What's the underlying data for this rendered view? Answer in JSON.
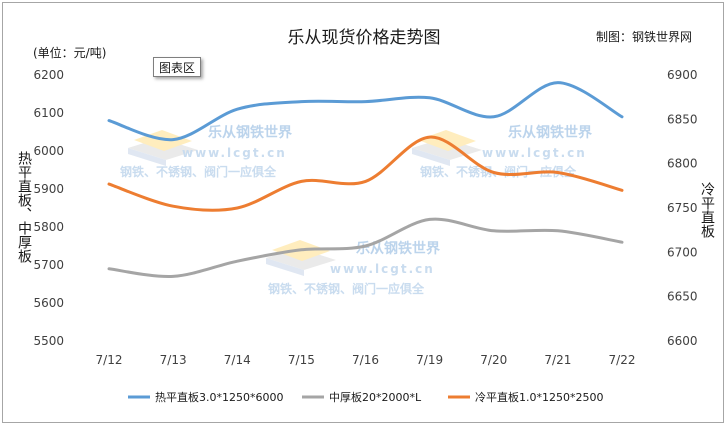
{
  "header": {
    "title": "乐从现货价格走势图",
    "credit": "制图：钢铁世界网",
    "unit": "(单位：元/吨)"
  },
  "tooltip": "图表区",
  "watermark": {
    "brand": "乐从钢铁世界",
    "url": "www.lcgt.cn",
    "slogan": "钢铁、不锈钢、阀门一应俱全"
  },
  "chart_data": {
    "type": "line",
    "categories": [
      "7/12",
      "7/13",
      "7/14",
      "7/15",
      "7/16",
      "7/19",
      "7/20",
      "7/21",
      "7/22"
    ],
    "y_left": {
      "label": "热平直板、中厚板",
      "range": [
        5500,
        6200
      ],
      "ticks": [
        5500,
        5600,
        5700,
        5800,
        5900,
        6000,
        6100,
        6200
      ]
    },
    "y_right": {
      "label": "冷平直板",
      "range": [
        6600,
        6900
      ],
      "ticks": [
        6600,
        6650,
        6700,
        6750,
        6800,
        6850,
        6900
      ]
    },
    "grid": false,
    "legend_position": "bottom",
    "series": [
      {
        "name": "热平直板3.0*1250*6000",
        "axis": "left",
        "color": "#5b9bd5",
        "values": [
          6080,
          6030,
          6110,
          6130,
          6130,
          6140,
          6090,
          6180,
          6090
        ]
      },
      {
        "name": "中厚板20*2000*L",
        "axis": "left",
        "color": "#a5a5a5",
        "values": [
          5690,
          5670,
          5710,
          5740,
          5750,
          5820,
          5790,
          5790,
          5760
        ]
      },
      {
        "name": "冷平直板1.0*1250*2500",
        "axis": "right",
        "color": "#ed7d31",
        "values": [
          6777,
          6752,
          6750,
          6780,
          6780,
          6830,
          6790,
          6790,
          6770
        ]
      }
    ]
  }
}
